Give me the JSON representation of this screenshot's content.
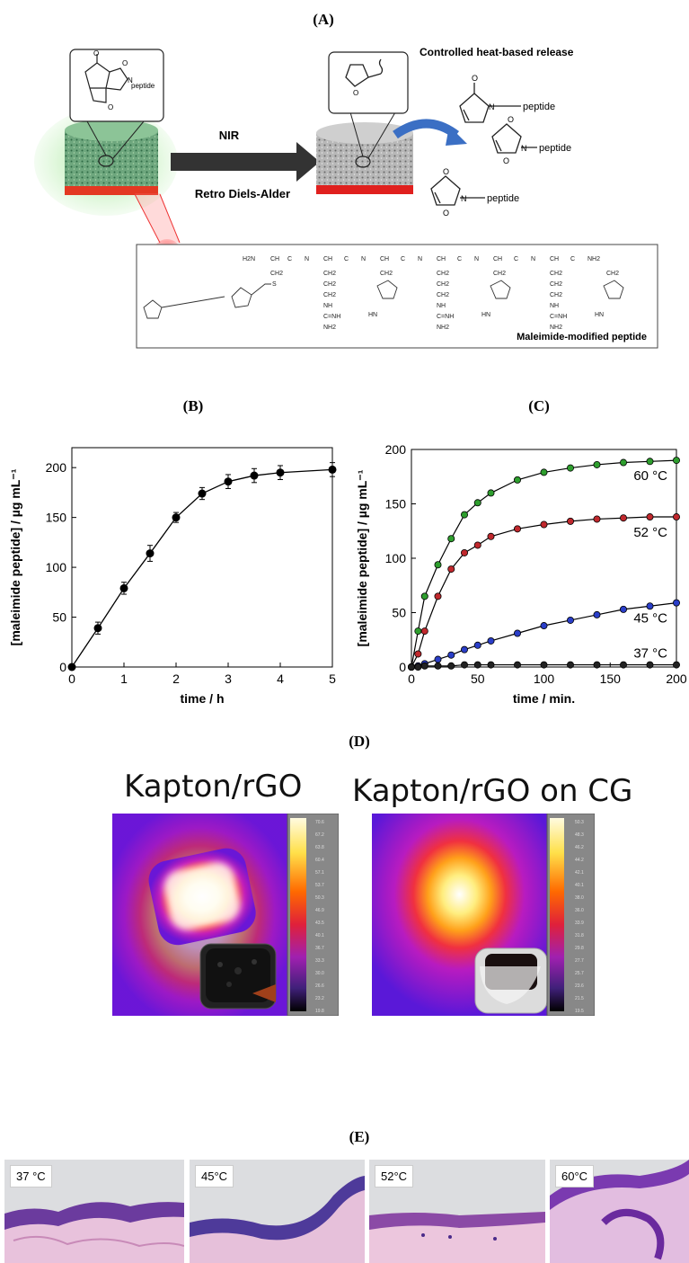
{
  "panels": {
    "a": "(A)",
    "b": "(B)",
    "c": "(C)",
    "d": "(D)",
    "e": "(E)"
  },
  "scheme": {
    "release_title": "Controlled heat-based release",
    "nir": "NIR",
    "reaction": "Retro Diels-Alder",
    "peptide": "peptide",
    "peptide_title": "Maleimide-modified peptide",
    "chem": {
      "h2n": "H2N",
      "nh2": "NH2",
      "ch": "CH",
      "ch2": "CH2",
      "c": "C",
      "n": "N",
      "o": "O",
      "h": "H",
      "s": "S",
      "nh": "NH",
      "cnh": "C=NH",
      "hn": "HN"
    }
  },
  "chart_b": {
    "type": "line",
    "x": [
      0,
      0.5,
      1,
      1.5,
      2,
      2.5,
      3,
      3.5,
      4,
      5
    ],
    "y": [
      0,
      39,
      79,
      114,
      150,
      174,
      186,
      192,
      195,
      198
    ],
    "err": [
      0,
      6,
      6,
      8,
      5,
      6,
      7,
      7,
      7,
      7
    ],
    "xlabel": "time / h",
    "ylabel": "[maleimide peptide] / µg mL⁻¹",
    "xlim": [
      0,
      5
    ],
    "ylim": [
      0,
      220
    ],
    "xticks": [
      "0",
      "1",
      "2",
      "3",
      "4",
      "5"
    ],
    "yticks": [
      "0",
      "50",
      "100",
      "150",
      "200"
    ]
  },
  "chart_c": {
    "type": "line",
    "xlabel": "time / min.",
    "ylabel": "[maleimide peptide] / µg mL⁻¹",
    "xlim": [
      0,
      200
    ],
    "ylim": [
      0,
      200
    ],
    "xticks": [
      "0",
      "50",
      "100",
      "150",
      "200"
    ],
    "yticks": [
      "0",
      "50",
      "100",
      "150",
      "200"
    ],
    "x": [
      0,
      5,
      10,
      20,
      30,
      40,
      50,
      60,
      80,
      100,
      120,
      140,
      160,
      180,
      200
    ],
    "series": [
      {
        "name": "60 °C",
        "color": "#2e9e2e",
        "values": [
          0,
          33,
          65,
          94,
          118,
          140,
          151,
          160,
          172,
          179,
          183,
          186,
          188,
          189,
          190
        ]
      },
      {
        "name": "52 °C",
        "color": "#c0282d",
        "values": [
          0,
          12,
          33,
          65,
          90,
          105,
          112,
          120,
          127,
          131,
          134,
          136,
          137,
          138,
          138
        ]
      },
      {
        "name": "45 °C",
        "color": "#2a3ec8",
        "values": [
          0,
          1,
          3,
          7,
          11,
          16,
          20,
          24,
          31,
          38,
          43,
          48,
          53,
          56,
          59
        ]
      },
      {
        "name": "37 °C",
        "color": "#222222",
        "values": [
          0,
          0,
          1,
          1,
          1,
          2,
          2,
          2,
          2,
          2,
          2,
          2,
          2,
          2,
          2
        ]
      }
    ]
  },
  "thermal": {
    "left_title": "Kapton/rGO",
    "right_title": "Kapton/rGO on CG",
    "left_scale": [
      "70.6",
      "67.2",
      "63.8",
      "60.4",
      "57.1",
      "53.7",
      "50.3",
      "46.9",
      "43.5",
      "40.1",
      "36.7",
      "33.3",
      "30.0",
      "26.6",
      "23.2",
      "19.8"
    ],
    "right_scale": [
      "50.3",
      "48.3",
      "46.2",
      "44.2",
      "42.1",
      "40.1",
      "38.0",
      "36.0",
      "33.9",
      "31.8",
      "29.8",
      "27.7",
      "25.7",
      "23.6",
      "21.5",
      "19.5"
    ]
  },
  "histology": [
    "37 °C",
    "45°C",
    "52°C",
    "60°C"
  ]
}
